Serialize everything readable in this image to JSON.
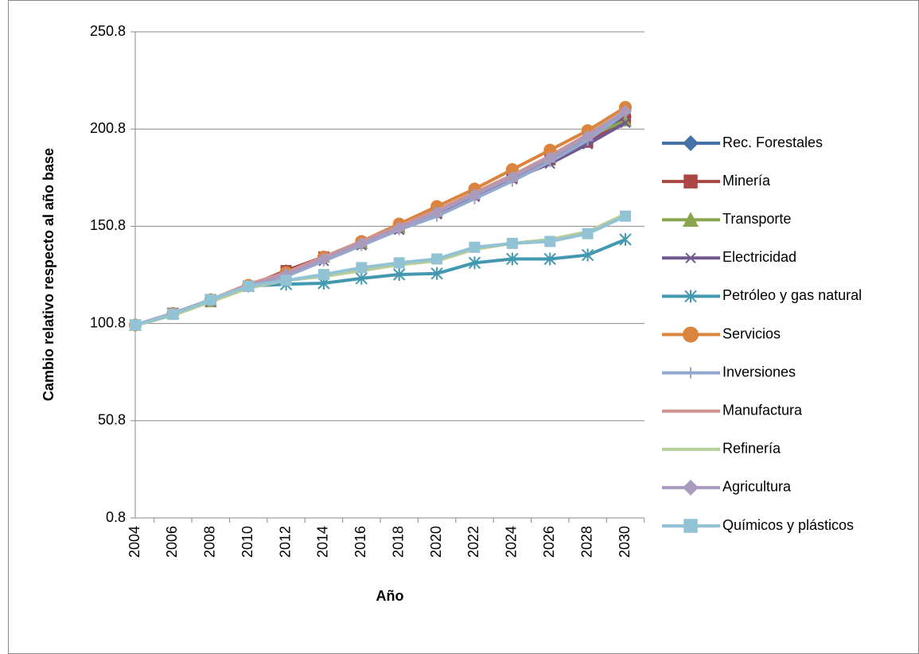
{
  "chart_data": {
    "type": "line",
    "x_label": "Año",
    "y_label": "Cambio relativo respecto al año base",
    "categories": [
      "2004",
      "2006",
      "2008",
      "2010",
      "2012",
      "2014",
      "2016",
      "2018",
      "2020",
      "2022",
      "2024",
      "2026",
      "2028",
      "2030"
    ],
    "ylim": [
      0.8,
      250.8
    ],
    "yticks": [
      0.8,
      50.8,
      100.8,
      150.8,
      200.8,
      250.8
    ],
    "grid": true,
    "legend": "right",
    "series": [
      {
        "name": "Rec. Forestales",
        "color": "#4572a7",
        "marker": "diamond",
        "values": [
          100,
          106,
          113,
          120,
          128,
          135,
          143,
          151,
          159,
          168,
          177,
          186,
          196,
          207
        ]
      },
      {
        "name": "Minería",
        "color": "#aa4643",
        "marker": "square",
        "values": [
          100,
          106,
          113,
          120,
          128,
          135,
          142,
          150,
          158,
          167,
          176,
          185,
          194,
          206
        ]
      },
      {
        "name": "Transporte",
        "color": "#89a54e",
        "marker": "triangle",
        "values": [
          100,
          106,
          112,
          120,
          126,
          135,
          142,
          150,
          159,
          168,
          177,
          186,
          197,
          205
        ]
      },
      {
        "name": "Electricidad",
        "color": "#71588f",
        "marker": "x",
        "values": [
          100,
          106,
          112,
          120,
          126,
          133,
          141,
          149,
          157,
          166,
          175,
          183,
          193,
          204
        ]
      },
      {
        "name": "Petróleo y gas natural",
        "color": "#4198af",
        "marker": "star",
        "values": [
          100,
          106,
          113,
          120,
          121,
          121.5,
          124,
          126,
          126.5,
          132,
          134,
          134,
          136,
          144
        ]
      },
      {
        "name": "Servicios",
        "color": "#db843d",
        "marker": "circle",
        "values": [
          100,
          106,
          113,
          120.5,
          127,
          135,
          143,
          152,
          161,
          170,
          180,
          190,
          200,
          212
        ]
      },
      {
        "name": "Inversiones",
        "color": "#93a9cf",
        "marker": "plus",
        "values": [
          100,
          106,
          112,
          120,
          125,
          133,
          141,
          149,
          156,
          165,
          174,
          184,
          195,
          209
        ]
      },
      {
        "name": "Manufactura",
        "color": "#d19392",
        "marker": "none",
        "values": [
          100,
          106,
          113,
          121,
          127,
          135,
          143,
          151,
          159,
          168,
          177,
          187,
          198,
          210
        ]
      },
      {
        "name": "Refinería",
        "color": "#b9cd96",
        "marker": "none",
        "values": [
          99.8,
          105,
          112,
          119,
          123,
          125,
          128,
          131,
          133,
          139,
          142,
          144,
          148,
          157
        ]
      },
      {
        "name": "Agricultura",
        "color": "#a99bbd",
        "marker": "diamond",
        "values": [
          100,
          106,
          113,
          120,
          126,
          134,
          142,
          150,
          158,
          167,
          176,
          186,
          197,
          210
        ]
      },
      {
        "name": "Químicos y plásticos",
        "color": "#92c3d5",
        "marker": "square",
        "values": [
          100,
          105.5,
          113,
          120,
          123,
          126,
          129.5,
          132,
          134,
          140,
          142,
          143,
          147,
          156
        ]
      }
    ]
  }
}
